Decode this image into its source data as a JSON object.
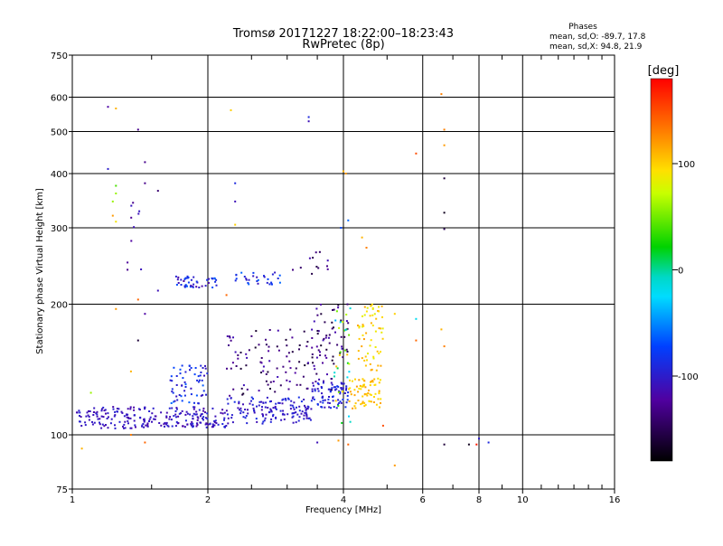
{
  "chart_data": {
    "type": "scatter",
    "title": "Tromsø 20171227  18:22:00–18:23:43",
    "subtitle": "RwPretec (8p)",
    "xlabel": "Frequency [MHz]",
    "ylabel": "Stationary phase Virtual Height [km]",
    "x_scale": "log",
    "y_scale": "log",
    "xlim": [
      1,
      16
    ],
    "ylim": [
      75,
      750
    ],
    "x_ticks": [
      1,
      2,
      4,
      6,
      8,
      10,
      16
    ],
    "x_tick_labels": [
      "1",
      "2",
      "4",
      "6",
      "8",
      "10",
      "16"
    ],
    "y_ticks": [
      75,
      100,
      200,
      300,
      400,
      500,
      600,
      750
    ],
    "y_tick_labels": [
      "75",
      "100",
      "200",
      "300",
      "400",
      "500",
      "600",
      "750"
    ],
    "grid": true,
    "phases": {
      "heading": "Phases",
      "line_o": "mean, sd,O: -89.7, 17.8",
      "line_x": "mean, sd,X:  94.8, 21.9"
    },
    "colorbar": {
      "label": "[deg]",
      "range": [
        -180,
        180
      ],
      "ticks": [
        100,
        0,
        -100
      ],
      "tick_labels": [
        "100",
        "0",
        "-100"
      ],
      "position": "right"
    },
    "clusters": [
      {
        "f": [
          1.02,
          1.6
        ],
        "h": [
          103,
          116
        ],
        "n": 130,
        "phase": [
          -120,
          -95
        ]
      },
      {
        "f": [
          1.6,
          2.2
        ],
        "h": [
          104,
          116
        ],
        "n": 110,
        "phase": [
          -120,
          -90
        ]
      },
      {
        "f": [
          2.2,
          3.4
        ],
        "h": [
          106,
          122
        ],
        "n": 140,
        "phase": [
          -115,
          -85
        ]
      },
      {
        "f": [
          3.4,
          4.1
        ],
        "h": [
          115,
          132
        ],
        "n": 80,
        "phase": [
          -110,
          -80
        ]
      },
      {
        "f": [
          1.65,
          2.0
        ],
        "h": [
          118,
          145
        ],
        "n": 60,
        "phase": [
          -110,
          -60
        ]
      },
      {
        "f": [
          2.2,
          3.8
        ],
        "h": [
          122,
          175
        ],
        "n": 110,
        "phase": [
          -165,
          -110
        ]
      },
      {
        "f": [
          3.4,
          4.1
        ],
        "h": [
          145,
          200
        ],
        "n": 45,
        "phase": [
          -160,
          -110
        ]
      },
      {
        "f": [
          1.7,
          2.1
        ],
        "h": [
          218,
          232
        ],
        "n": 45,
        "phase": [
          -120,
          -60
        ]
      },
      {
        "f": [
          2.3,
          2.9
        ],
        "h": [
          222,
          238
        ],
        "n": 30,
        "phase": [
          -110,
          -60
        ]
      },
      {
        "f": [
          3.0,
          3.7
        ],
        "h": [
          235,
          265
        ],
        "n": 12,
        "phase": [
          -160,
          -110
        ]
      },
      {
        "f": [
          4.1,
          4.9
        ],
        "h": [
          115,
          135
        ],
        "n": 70,
        "phase": [
          90,
          120
        ]
      },
      {
        "f": [
          4.3,
          4.9
        ],
        "h": [
          140,
          200
        ],
        "n": 60,
        "phase": [
          80,
          120
        ]
      },
      {
        "f": [
          3.8,
          4.2
        ],
        "h": [
          105,
          200
        ],
        "n": 30,
        "phase": [
          -40,
          110
        ]
      },
      {
        "f": [
          1.3,
          1.45
        ],
        "h": [
          240,
          360
        ],
        "n": 10,
        "phase": [
          -130,
          -100
        ]
      }
    ],
    "points": [
      {
        "f": 1.2,
        "h": 570,
        "phase": -120
      },
      {
        "f": 1.25,
        "h": 565,
        "phase": 110
      },
      {
        "f": 1.4,
        "h": 505,
        "phase": -130
      },
      {
        "f": 1.2,
        "h": 410,
        "phase": -100
      },
      {
        "f": 1.45,
        "h": 425,
        "phase": -130
      },
      {
        "f": 1.45,
        "h": 380,
        "phase": -130
      },
      {
        "f": 1.55,
        "h": 365,
        "phase": -140
      },
      {
        "f": 1.25,
        "h": 375,
        "phase": 40
      },
      {
        "f": 1.25,
        "h": 360,
        "phase": 60
      },
      {
        "f": 1.23,
        "h": 345,
        "phase": 60
      },
      {
        "f": 1.23,
        "h": 320,
        "phase": 120
      },
      {
        "f": 1.25,
        "h": 310,
        "phase": 90
      },
      {
        "f": 2.25,
        "h": 560,
        "phase": 100
      },
      {
        "f": 2.3,
        "h": 380,
        "phase": -90
      },
      {
        "f": 2.3,
        "h": 345,
        "phase": -110
      },
      {
        "f": 2.3,
        "h": 305,
        "phase": 100
      },
      {
        "f": 3.35,
        "h": 540,
        "phase": -90
      },
      {
        "f": 3.35,
        "h": 528,
        "phase": -110
      },
      {
        "f": 4.0,
        "h": 405,
        "phase": 110
      },
      {
        "f": 4.05,
        "h": 400,
        "phase": 120
      },
      {
        "f": 3.95,
        "h": 300,
        "phase": -70
      },
      {
        "f": 4.1,
        "h": 312,
        "phase": -60
      },
      {
        "f": 4.4,
        "h": 285,
        "phase": 110
      },
      {
        "f": 4.5,
        "h": 270,
        "phase": 130
      },
      {
        "f": 5.8,
        "h": 445,
        "phase": 150
      },
      {
        "f": 6.6,
        "h": 610,
        "phase": 130
      },
      {
        "f": 6.7,
        "h": 505,
        "phase": 130
      },
      {
        "f": 6.7,
        "h": 465,
        "phase": 120
      },
      {
        "f": 6.7,
        "h": 390,
        "phase": -160
      },
      {
        "f": 6.7,
        "h": 325,
        "phase": -170
      },
      {
        "f": 6.7,
        "h": 298,
        "phase": -150
      },
      {
        "f": 5.2,
        "h": 190,
        "phase": 100
      },
      {
        "f": 5.8,
        "h": 185,
        "phase": -20
      },
      {
        "f": 5.8,
        "h": 165,
        "phase": 140
      },
      {
        "f": 6.6,
        "h": 175,
        "phase": 110
      },
      {
        "f": 6.7,
        "h": 160,
        "phase": 130
      },
      {
        "f": 6.7,
        "h": 95,
        "phase": -160
      },
      {
        "f": 7.6,
        "h": 95,
        "phase": -170
      },
      {
        "f": 7.9,
        "h": 95,
        "phase": 170
      },
      {
        "f": 8.0,
        "h": 98,
        "phase": -100
      },
      {
        "f": 8.4,
        "h": 96,
        "phase": -90
      },
      {
        "f": 4.9,
        "h": 105,
        "phase": 150
      },
      {
        "f": 5.2,
        "h": 85,
        "phase": 120
      },
      {
        "f": 3.5,
        "h": 96,
        "phase": -110
      },
      {
        "f": 3.9,
        "h": 97,
        "phase": 120
      },
      {
        "f": 4.1,
        "h": 95,
        "phase": 140
      },
      {
        "f": 1.05,
        "h": 93,
        "phase": 110
      },
      {
        "f": 1.35,
        "h": 100,
        "phase": 130
      },
      {
        "f": 1.45,
        "h": 96,
        "phase": 140
      },
      {
        "f": 1.4,
        "h": 205,
        "phase": 140
      },
      {
        "f": 1.25,
        "h": 195,
        "phase": 120
      },
      {
        "f": 1.45,
        "h": 190,
        "phase": -120
      },
      {
        "f": 1.4,
        "h": 165,
        "phase": -160
      },
      {
        "f": 1.35,
        "h": 140,
        "phase": 110
      },
      {
        "f": 1.1,
        "h": 125,
        "phase": 60
      },
      {
        "f": 1.55,
        "h": 215,
        "phase": -110
      },
      {
        "f": 2.2,
        "h": 210,
        "phase": 140
      }
    ]
  }
}
